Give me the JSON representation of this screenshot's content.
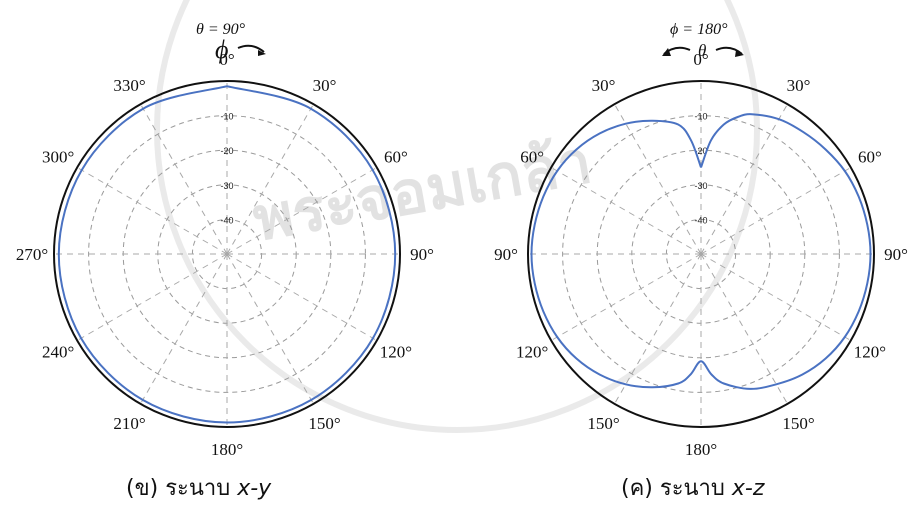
{
  "chart_data": [
    {
      "type": "polar",
      "caption_prefix": "(ข) ระนาบ ",
      "caption_plane": "x-y",
      "header_label": "θ = 90°",
      "header_symbol": "ϕ",
      "angle_labels": [
        "0°",
        "30°",
        "60°",
        "90°",
        "120°",
        "150°",
        "180°",
        "210°",
        "240°",
        "270°",
        "300°",
        "330°"
      ],
      "radial_labels": [
        "-10",
        "-20",
        "-30",
        "-40"
      ],
      "radial_range_db": [
        -50,
        0
      ],
      "grid": true,
      "series": [
        {
          "angle_deg": [
            0,
            30,
            60,
            90,
            120,
            150,
            180,
            210,
            240,
            270,
            300,
            330,
            360
          ],
          "gain_db": [
            -1.5,
            -1.5,
            -1.4,
            -1.4,
            -1.3,
            -1.3,
            -1.3,
            -1.3,
            -1.3,
            -1.4,
            -1.5,
            -1.5,
            -1.5
          ]
        }
      ]
    },
    {
      "type": "polar",
      "caption_prefix": "(ค) ระนาบ ",
      "caption_plane": "x-z",
      "header_label": "ϕ = 180°",
      "header_symbol": "θ",
      "angle_labels": [
        "0°",
        "30°",
        "60°",
        "90°",
        "120°",
        "150°",
        "180°",
        "150°",
        "120°",
        "90°",
        "60°",
        "30°"
      ],
      "radial_labels": [
        "-10",
        "-20",
        "-30",
        "-40"
      ],
      "radial_range_db": [
        -50,
        0
      ],
      "grid": true,
      "series": [
        {
          "angle_deg": [
            0,
            5,
            10,
            15,
            20,
            30,
            40,
            50,
            60,
            70,
            80,
            90,
            100,
            110,
            120,
            130,
            140,
            150,
            160,
            170,
            175,
            180,
            185,
            190,
            200,
            210,
            220,
            230,
            240,
            250,
            260,
            270,
            280,
            290,
            300,
            310,
            320,
            330,
            340,
            350,
            355,
            360
          ],
          "gain_db": [
            -25,
            -17,
            -12,
            -9,
            -7,
            -5,
            -4,
            -3,
            -2,
            -1.5,
            -1.2,
            -1,
            -1.2,
            -1.5,
            -2,
            -3,
            -4.5,
            -6.5,
            -8.5,
            -12,
            -15,
            -19,
            -15,
            -12,
            -9,
            -6.5,
            -4.5,
            -3,
            -2,
            -1.5,
            -1.2,
            -1,
            -1.2,
            -1.5,
            -2,
            -3,
            -4.5,
            -6.5,
            -9,
            -12,
            -17,
            -25
          ]
        }
      ]
    }
  ]
}
